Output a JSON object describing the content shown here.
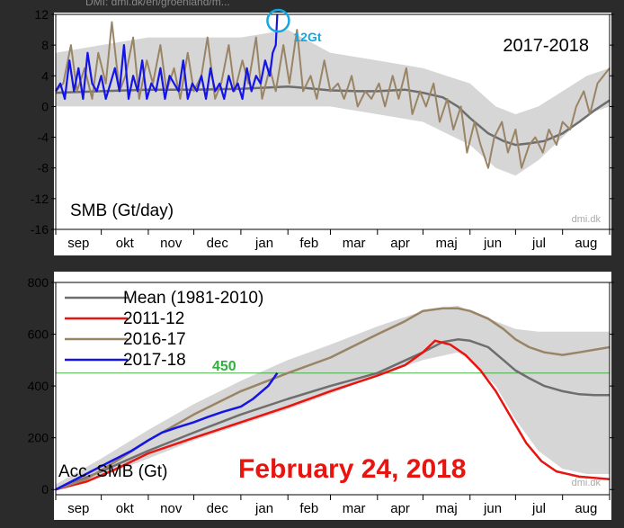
{
  "header": {
    "source_url": "DMI: dmi.dk/en/groenland/m..."
  },
  "colors": {
    "background": "#2b2b2b",
    "plot_bg": "#ffffff",
    "band": "#d6d6d6",
    "mean": "#6e6e6e",
    "s2011": "#e8140f",
    "s2016": "#9a8466",
    "s2017": "#1414e6",
    "highlight": "#15a6e0",
    "annot_green": "#30b040",
    "hline": "#43b043"
  },
  "months": [
    "sep",
    "okt",
    "nov",
    "dec",
    "jan",
    "feb",
    "mar",
    "apr",
    "maj",
    "jun",
    "jul",
    "aug"
  ],
  "chart_data": [
    {
      "type": "line",
      "title": "2017-2018",
      "ylabel": "SMB (Gt/day)",
      "watermark": "dmi.dk",
      "xlim": [
        0,
        365
      ],
      "ylim": [
        -16,
        12
      ],
      "yticks": [
        12,
        8,
        4,
        0,
        -4,
        -8,
        -12,
        -16
      ],
      "annotation": {
        "text": "12Gt",
        "x": 146,
        "y": 12
      },
      "band": {
        "x": [
          0,
          30,
          61,
          91,
          122,
          153,
          181,
          212,
          242,
          273,
          290,
          303,
          318,
          334,
          350,
          365
        ],
        "upper": [
          7,
          8,
          9,
          9,
          9,
          10,
          7,
          6,
          5,
          3,
          0,
          -1,
          0,
          2,
          4,
          5
        ],
        "lower": [
          0,
          0,
          0,
          0,
          0,
          0,
          0,
          -1,
          -2,
          -5,
          -8,
          -9,
          -7,
          -4,
          -1,
          0
        ]
      },
      "series": [
        {
          "name": "Mean (1981-2010)",
          "x": [
            0,
            30,
            61,
            91,
            122,
            153,
            165,
            181,
            200,
            212,
            230,
            242,
            255,
            265,
            273,
            285,
            295,
            303,
            312,
            322,
            334,
            345,
            355,
            365
          ],
          "y": [
            1.8,
            2,
            2.2,
            2.2,
            2.3,
            2.6,
            2.4,
            2.1,
            2,
            2,
            2.2,
            1.8,
            1.2,
            0,
            -1.5,
            -3.5,
            -4.5,
            -5,
            -4.8,
            -4.5,
            -3.5,
            -2,
            -0.5,
            0.8
          ]
        },
        {
          "name": "2016-17",
          "x": [
            0,
            5,
            10,
            14,
            19,
            24,
            28,
            33,
            37,
            42,
            46,
            51,
            55,
            60,
            64,
            69,
            73,
            78,
            82,
            87,
            91,
            96,
            100,
            105,
            109,
            114,
            118,
            123,
            127,
            132,
            136,
            141,
            145,
            150,
            154,
            159,
            163,
            168,
            172,
            177,
            181,
            186,
            190,
            195,
            199,
            204,
            208,
            213,
            217,
            222,
            226,
            231,
            235,
            240,
            244,
            249,
            253,
            258,
            262,
            267,
            271,
            276,
            280,
            285,
            289,
            294,
            298,
            303,
            307,
            312,
            316,
            321,
            325,
            330,
            334,
            339,
            343,
            348,
            352,
            357,
            361,
            365
          ],
          "y": [
            2,
            3,
            8,
            2,
            5,
            1,
            7,
            3,
            11,
            2,
            4,
            9,
            1,
            6,
            3,
            8,
            2,
            5,
            1,
            7,
            2,
            4,
            9,
            1,
            3,
            8,
            2,
            6,
            3,
            9,
            1,
            5,
            2,
            8,
            3,
            10,
            2,
            4,
            1,
            6,
            2,
            3,
            1,
            4,
            0,
            2,
            1,
            3,
            0,
            4,
            1,
            5,
            -1,
            2,
            0,
            3,
            -2,
            1,
            -3,
            0,
            -6,
            -2,
            -5,
            -8,
            -4,
            -2,
            -6,
            -3,
            -8,
            -5,
            -4,
            -6,
            -3,
            -5,
            -2,
            -3,
            0,
            2,
            -1,
            3,
            4,
            5
          ]
        },
        {
          "name": "2017-18",
          "x": [
            0,
            3,
            6,
            9,
            12,
            15,
            18,
            21,
            24,
            27,
            30,
            33,
            36,
            39,
            42,
            45,
            48,
            51,
            54,
            57,
            60,
            63,
            66,
            69,
            72,
            75,
            78,
            81,
            84,
            87,
            90,
            93,
            96,
            99,
            102,
            105,
            108,
            111,
            114,
            117,
            120,
            123,
            126,
            129,
            132,
            135,
            138,
            141,
            143,
            145,
            146
          ],
          "y": [
            2,
            3,
            1,
            6,
            2,
            5,
            1,
            7,
            3,
            2,
            4,
            1,
            3,
            5,
            2,
            8,
            1,
            4,
            2,
            6,
            1,
            3,
            2,
            5,
            1,
            4,
            3,
            2,
            6,
            1,
            3,
            2,
            4,
            1,
            5,
            2,
            3,
            1,
            4,
            2,
            3,
            1,
            5,
            2,
            4,
            3,
            6,
            4,
            7,
            8,
            12
          ]
        }
      ]
    },
    {
      "type": "line",
      "title": "February 24, 2018",
      "ylabel": "Acc. SMB (Gt)",
      "watermark": "dmi.dk",
      "xlim": [
        0,
        365
      ],
      "ylim": [
        -20,
        800
      ],
      "yticks": [
        800,
        600,
        400,
        200,
        0
      ],
      "hline": {
        "value": 450,
        "label": "450"
      },
      "legend_position": "top-left",
      "band": {
        "x": [
          0,
          30,
          61,
          91,
          122,
          153,
          181,
          212,
          242,
          265,
          273,
          290,
          303,
          318,
          334,
          350,
          365
        ],
        "upper": [
          20,
          120,
          230,
          330,
          420,
          500,
          560,
          630,
          690,
          710,
          690,
          650,
          620,
          610,
          610,
          610,
          610
        ],
        "lower": [
          0,
          50,
          120,
          190,
          250,
          310,
          370,
          440,
          500,
          530,
          500,
          400,
          270,
          150,
          80,
          60,
          60
        ]
      },
      "series": [
        {
          "name": "Mean (1981-2010)",
          "x": [
            0,
            30,
            61,
            91,
            122,
            153,
            181,
            212,
            242,
            255,
            265,
            273,
            285,
            295,
            303,
            312,
            322,
            334,
            345,
            355,
            365
          ],
          "y": [
            0,
            70,
            150,
            220,
            290,
            350,
            400,
            450,
            530,
            570,
            580,
            575,
            550,
            500,
            460,
            430,
            400,
            380,
            368,
            365,
            365
          ]
        },
        {
          "name": "2011-12",
          "x": [
            0,
            20,
            40,
            61,
            91,
            122,
            153,
            181,
            212,
            230,
            242,
            250,
            260,
            270,
            280,
            290,
            300,
            310,
            320,
            330,
            345,
            365
          ],
          "y": [
            0,
            30,
            80,
            140,
            200,
            260,
            320,
            380,
            440,
            480,
            530,
            575,
            560,
            520,
            460,
            380,
            280,
            180,
            110,
            70,
            50,
            40
          ]
        },
        {
          "name": "2016-17",
          "x": [
            0,
            20,
            40,
            61,
            91,
            122,
            153,
            181,
            212,
            230,
            242,
            255,
            265,
            273,
            285,
            295,
            303,
            312,
            322,
            334,
            345,
            355,
            365
          ],
          "y": [
            0,
            40,
            110,
            190,
            290,
            380,
            450,
            510,
            600,
            650,
            690,
            700,
            700,
            690,
            660,
            620,
            580,
            550,
            530,
            520,
            530,
            540,
            550
          ]
        },
        {
          "name": "2017-18",
          "x": [
            0,
            10,
            20,
            30,
            40,
            50,
            61,
            70,
            80,
            91,
            100,
            110,
            122,
            130,
            140,
            146
          ],
          "y": [
            0,
            30,
            60,
            90,
            120,
            150,
            190,
            220,
            240,
            260,
            280,
            300,
            320,
            350,
            400,
            450
          ]
        }
      ]
    }
  ]
}
